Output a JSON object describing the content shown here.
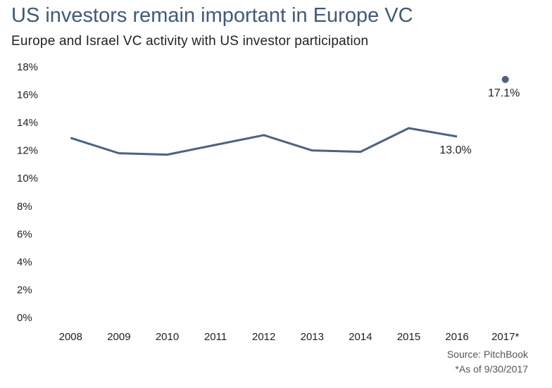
{
  "header": {
    "title": "US investors remain important in Europe VC",
    "subtitle": "Europe and Israel VC activity with US investor participation"
  },
  "footer": {
    "source": "Source: PitchBook",
    "note": "*As of 9/30/2017"
  },
  "colors": {
    "series": "#4a6283",
    "title": "#3d5a80"
  },
  "chart_data": {
    "type": "line",
    "title": "US investors remain important in Europe VC",
    "subtitle": "Europe and Israel VC activity with US investor participation",
    "categories": [
      "2008",
      "2009",
      "2010",
      "2011",
      "2012",
      "2013",
      "2014",
      "2015",
      "2016",
      "2017*"
    ],
    "series": [
      {
        "values": [
          12.9,
          11.8,
          11.7,
          12.4,
          13.1,
          12.0,
          11.9,
          13.6,
          13.0,
          null
        ]
      },
      {
        "values": [
          null,
          null,
          null,
          null,
          null,
          null,
          null,
          null,
          null,
          17.1
        ],
        "style": "point"
      }
    ],
    "ylim": [
      0,
      18
    ],
    "yticks": [
      "0%",
      "2%",
      "4%",
      "6%",
      "8%",
      "10%",
      "12%",
      "14%",
      "16%",
      "18%"
    ],
    "data_labels": [
      {
        "category": "2016",
        "text": "13.0%"
      },
      {
        "category": "2017*",
        "text": "17.1%"
      }
    ],
    "grid": false,
    "legend": "none"
  }
}
